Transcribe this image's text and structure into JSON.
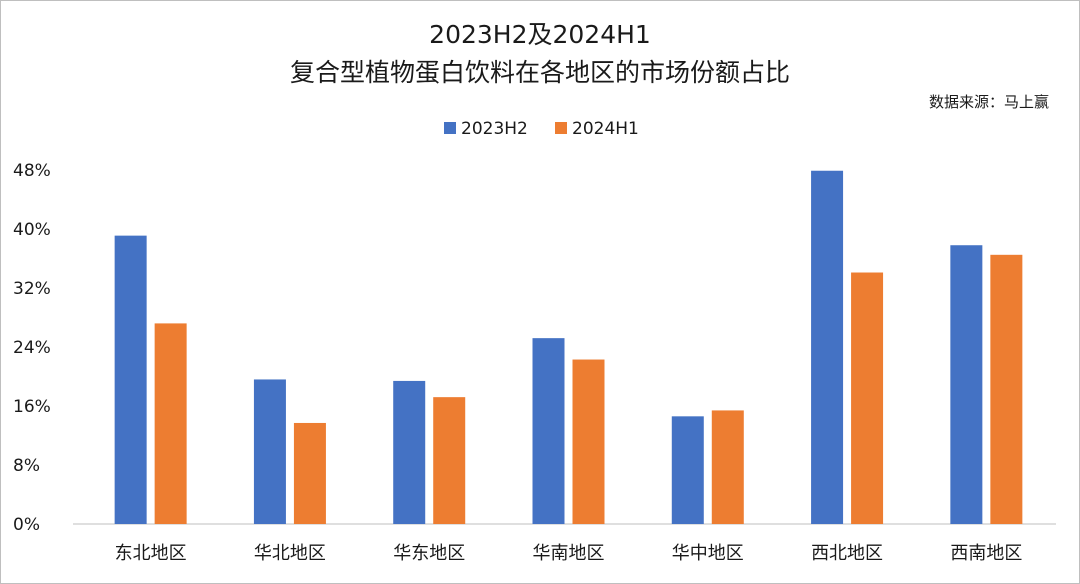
{
  "chart_data": {
    "type": "bar",
    "title": "2023H2及2024H1",
    "subtitle": "复合型植物蛋白饮料在各地区的市场份额占比",
    "source": "数据来源：马上赢",
    "categories": [
      "东北地区",
      "华北地区",
      "华东地区",
      "华南地区",
      "华中地区",
      "西北地区",
      "西南地区"
    ],
    "series": [
      {
        "name": "2023H2",
        "color": "#4472C4",
        "values": [
          39.1,
          19.6,
          19.4,
          25.2,
          14.6,
          47.9,
          37.8
        ]
      },
      {
        "name": "2024H1",
        "color": "#ED7D31",
        "values": [
          27.2,
          13.7,
          17.2,
          22.3,
          15.4,
          34.1,
          36.5
        ]
      }
    ],
    "ylim": [
      0,
      48
    ],
    "yticks": [
      0,
      8,
      16,
      24,
      32,
      40,
      48
    ],
    "ytick_labels": [
      "0%",
      "8%",
      "16%",
      "24%",
      "32%",
      "40%",
      "48%"
    ],
    "xlabel": "",
    "ylabel": "",
    "legend_position": "top",
    "grid": false
  }
}
